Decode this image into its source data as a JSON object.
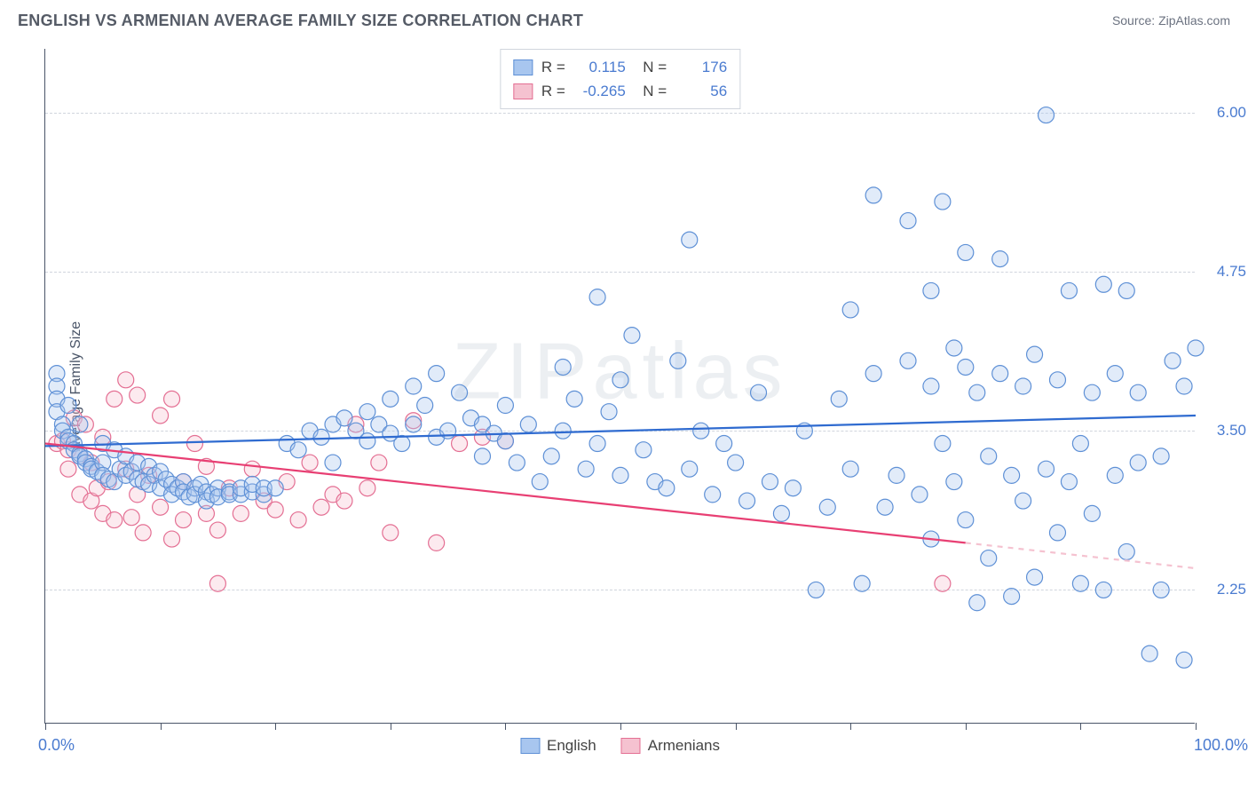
{
  "header": {
    "title": "ENGLISH VS ARMENIAN AVERAGE FAMILY SIZE CORRELATION CHART",
    "source_prefix": "Source: ",
    "source_name": "ZipAtlas.com"
  },
  "chart": {
    "type": "scatter",
    "watermark": "ZIPatlas",
    "yaxis_title": "Average Family Size",
    "xlim": [
      0,
      100
    ],
    "ylim": [
      1.2,
      6.5
    ],
    "yticks": [
      2.25,
      3.5,
      4.75,
      6.0
    ],
    "ytick_labels": [
      "2.25",
      "3.50",
      "4.75",
      "6.00"
    ],
    "xticks_pct": [
      0,
      10,
      20,
      30,
      40,
      50,
      60,
      70,
      80,
      90,
      100
    ],
    "xlabel_min": "0.0%",
    "xlabel_max": "100.0%",
    "grid_color": "#d0d5dd",
    "axis_color": "#4a5568",
    "background_color": "#ffffff",
    "marker_radius": 9,
    "series": {
      "english": {
        "label": "English",
        "R": "0.115",
        "N": "176",
        "fill": "#a8c6ef",
        "stroke": "#5e90d6",
        "line_color": "#2f6bd0",
        "trend": {
          "x1": 0,
          "y1": 3.38,
          "x2": 100,
          "y2": 3.62
        },
        "points": [
          [
            1,
            3.95
          ],
          [
            1,
            3.85
          ],
          [
            1,
            3.75
          ],
          [
            1,
            3.65
          ],
          [
            1.5,
            3.55
          ],
          [
            1.5,
            3.5
          ],
          [
            2,
            3.45
          ],
          [
            2,
            3.42
          ],
          [
            2,
            3.7
          ],
          [
            2.5,
            3.4
          ],
          [
            2.5,
            3.35
          ],
          [
            3,
            3.32
          ],
          [
            3,
            3.3
          ],
          [
            3,
            3.55
          ],
          [
            3.5,
            3.28
          ],
          [
            3.5,
            3.25
          ],
          [
            4,
            3.22
          ],
          [
            4,
            3.2
          ],
          [
            4.5,
            3.18
          ],
          [
            5,
            3.25
          ],
          [
            5,
            3.15
          ],
          [
            5,
            3.4
          ],
          [
            5.5,
            3.12
          ],
          [
            6,
            3.1
          ],
          [
            6,
            3.35
          ],
          [
            6.5,
            3.2
          ],
          [
            7,
            3.15
          ],
          [
            7,
            3.3
          ],
          [
            7.5,
            3.18
          ],
          [
            8,
            3.12
          ],
          [
            8,
            3.25
          ],
          [
            8.5,
            3.1
          ],
          [
            9,
            3.08
          ],
          [
            9,
            3.22
          ],
          [
            9.5,
            3.15
          ],
          [
            10,
            3.05
          ],
          [
            10,
            3.18
          ],
          [
            10.5,
            3.12
          ],
          [
            11,
            3.08
          ],
          [
            11,
            3.0
          ],
          [
            11.5,
            3.05
          ],
          [
            12,
            3.1
          ],
          [
            12,
            3.02
          ],
          [
            12.5,
            2.98
          ],
          [
            13,
            3.05
          ],
          [
            13,
            3.0
          ],
          [
            13.5,
            3.08
          ],
          [
            14,
            3.02
          ],
          [
            14,
            2.95
          ],
          [
            14.5,
            3.0
          ],
          [
            15,
            3.05
          ],
          [
            15,
            2.98
          ],
          [
            16,
            3.02
          ],
          [
            16,
            3.0
          ],
          [
            17,
            3.0
          ],
          [
            17,
            3.05
          ],
          [
            18,
            3.02
          ],
          [
            18,
            3.08
          ],
          [
            19,
            3.0
          ],
          [
            19,
            3.05
          ],
          [
            20,
            3.05
          ],
          [
            21,
            3.4
          ],
          [
            22,
            3.35
          ],
          [
            23,
            3.5
          ],
          [
            24,
            3.45
          ],
          [
            25,
            3.25
          ],
          [
            25,
            3.55
          ],
          [
            26,
            3.6
          ],
          [
            27,
            3.5
          ],
          [
            28,
            3.42
          ],
          [
            28,
            3.65
          ],
          [
            29,
            3.55
          ],
          [
            30,
            3.48
          ],
          [
            30,
            3.75
          ],
          [
            31,
            3.4
          ],
          [
            32,
            3.55
          ],
          [
            32,
            3.85
          ],
          [
            33,
            3.7
          ],
          [
            34,
            3.95
          ],
          [
            34,
            3.45
          ],
          [
            35,
            3.5
          ],
          [
            36,
            3.8
          ],
          [
            37,
            3.6
          ],
          [
            38,
            3.3
          ],
          [
            38,
            3.55
          ],
          [
            39,
            3.48
          ],
          [
            40,
            3.42
          ],
          [
            40,
            3.7
          ],
          [
            41,
            3.25
          ],
          [
            42,
            3.55
          ],
          [
            43,
            3.1
          ],
          [
            44,
            3.3
          ],
          [
            45,
            3.5
          ],
          [
            45,
            4.0
          ],
          [
            46,
            3.75
          ],
          [
            47,
            3.2
          ],
          [
            48,
            4.55
          ],
          [
            48,
            3.4
          ],
          [
            49,
            3.65
          ],
          [
            50,
            3.15
          ],
          [
            50,
            3.9
          ],
          [
            51,
            4.25
          ],
          [
            52,
            3.35
          ],
          [
            53,
            3.1
          ],
          [
            54,
            3.05
          ],
          [
            55,
            4.05
          ],
          [
            56,
            3.2
          ],
          [
            56,
            5.0
          ],
          [
            57,
            3.5
          ],
          [
            58,
            3.0
          ],
          [
            59,
            3.4
          ],
          [
            60,
            3.25
          ],
          [
            61,
            2.95
          ],
          [
            62,
            3.8
          ],
          [
            63,
            3.1
          ],
          [
            64,
            2.85
          ],
          [
            65,
            3.05
          ],
          [
            66,
            3.5
          ],
          [
            67,
            2.25
          ],
          [
            68,
            2.9
          ],
          [
            69,
            3.75
          ],
          [
            70,
            3.2
          ],
          [
            70,
            4.45
          ],
          [
            71,
            2.3
          ],
          [
            72,
            3.95
          ],
          [
            72,
            5.35
          ],
          [
            73,
            2.9
          ],
          [
            74,
            3.15
          ],
          [
            75,
            4.05
          ],
          [
            75,
            5.15
          ],
          [
            76,
            3.0
          ],
          [
            77,
            2.65
          ],
          [
            77,
            3.85
          ],
          [
            77,
            4.6
          ],
          [
            78,
            3.4
          ],
          [
            78,
            5.3
          ],
          [
            79,
            3.1
          ],
          [
            79,
            4.15
          ],
          [
            80,
            2.8
          ],
          [
            80,
            4.0
          ],
          [
            80,
            4.9
          ],
          [
            81,
            2.15
          ],
          [
            81,
            3.8
          ],
          [
            82,
            2.5
          ],
          [
            82,
            3.3
          ],
          [
            83,
            3.95
          ],
          [
            83,
            4.85
          ],
          [
            84,
            2.2
          ],
          [
            84,
            3.15
          ],
          [
            85,
            2.95
          ],
          [
            85,
            3.85
          ],
          [
            86,
            4.1
          ],
          [
            86,
            2.35
          ],
          [
            87,
            3.2
          ],
          [
            87,
            5.98
          ],
          [
            88,
            2.7
          ],
          [
            88,
            3.9
          ],
          [
            89,
            3.1
          ],
          [
            89,
            4.6
          ],
          [
            90,
            2.3
          ],
          [
            90,
            3.4
          ],
          [
            91,
            2.85
          ],
          [
            91,
            3.8
          ],
          [
            92,
            4.65
          ],
          [
            92,
            2.25
          ],
          [
            93,
            3.95
          ],
          [
            93,
            3.15
          ],
          [
            94,
            4.6
          ],
          [
            94,
            2.55
          ],
          [
            95,
            3.8
          ],
          [
            95,
            3.25
          ],
          [
            96,
            1.75
          ],
          [
            97,
            3.3
          ],
          [
            97,
            2.25
          ],
          [
            98,
            4.05
          ],
          [
            99,
            1.7
          ],
          [
            99,
            3.85
          ],
          [
            100,
            4.15
          ]
        ]
      },
      "armenian": {
        "label": "Armenians",
        "R": "-0.265",
        "N": "56",
        "fill": "#f5c2d0",
        "stroke": "#e46f93",
        "line_color": "#e83f73",
        "trend_solid": {
          "x1": 0,
          "y1": 3.4,
          "x2": 80,
          "y2": 2.62
        },
        "trend_dash": {
          "x1": 80,
          "y1": 2.62,
          "x2": 100,
          "y2": 2.42
        },
        "points": [
          [
            1,
            3.4
          ],
          [
            1.5,
            3.42
          ],
          [
            2,
            3.35
          ],
          [
            2,
            3.2
          ],
          [
            2.5,
            3.6
          ],
          [
            3,
            3.3
          ],
          [
            3,
            3.0
          ],
          [
            3.5,
            3.55
          ],
          [
            4,
            3.25
          ],
          [
            4,
            2.95
          ],
          [
            4.5,
            3.05
          ],
          [
            5,
            3.45
          ],
          [
            5,
            2.85
          ],
          [
            5.5,
            3.1
          ],
          [
            6,
            3.75
          ],
          [
            6,
            2.8
          ],
          [
            7,
            3.2
          ],
          [
            7,
            3.9
          ],
          [
            7.5,
            2.82
          ],
          [
            8,
            3.0
          ],
          [
            8,
            3.78
          ],
          [
            8.5,
            2.7
          ],
          [
            9,
            3.15
          ],
          [
            10,
            3.62
          ],
          [
            10,
            2.9
          ],
          [
            11,
            3.75
          ],
          [
            11,
            2.65
          ],
          [
            12,
            3.1
          ],
          [
            12,
            2.8
          ],
          [
            13,
            3.4
          ],
          [
            14,
            2.85
          ],
          [
            14,
            3.22
          ],
          [
            15,
            2.72
          ],
          [
            15,
            2.3
          ],
          [
            16,
            3.05
          ],
          [
            17,
            2.85
          ],
          [
            18,
            3.2
          ],
          [
            19,
            2.95
          ],
          [
            20,
            2.88
          ],
          [
            21,
            3.1
          ],
          [
            22,
            2.8
          ],
          [
            23,
            3.25
          ],
          [
            24,
            2.9
          ],
          [
            25,
            3.0
          ],
          [
            26,
            2.95
          ],
          [
            27,
            3.55
          ],
          [
            28,
            3.05
          ],
          [
            29,
            3.25
          ],
          [
            30,
            2.7
          ],
          [
            32,
            3.58
          ],
          [
            34,
            2.62
          ],
          [
            36,
            3.4
          ],
          [
            38,
            3.45
          ],
          [
            40,
            3.42
          ],
          [
            78,
            2.3
          ]
        ]
      }
    }
  }
}
